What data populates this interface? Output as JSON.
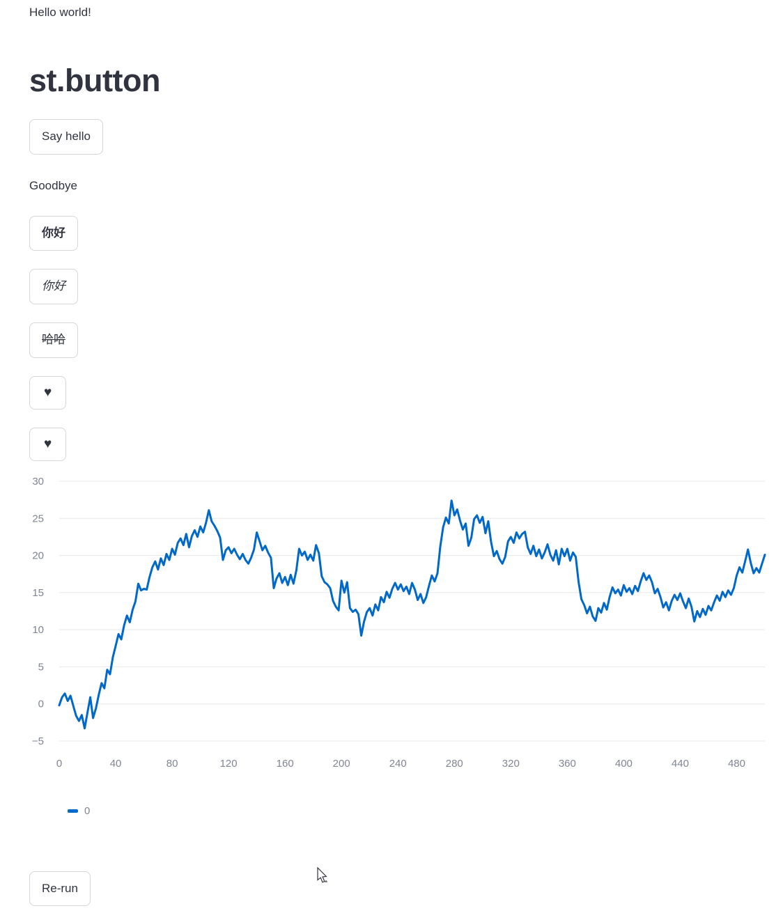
{
  "page": {
    "greeting": "Hello world!",
    "heading": "st.button",
    "say_hello_label": "Say hello",
    "goodbye_text": "Goodbye",
    "buttons": [
      {
        "label": "你好",
        "style": "bold"
      },
      {
        "label": "你好",
        "style": "italic"
      },
      {
        "label": "哈哈",
        "style": "strikethrough"
      },
      {
        "label": "♥",
        "style": "heart"
      },
      {
        "label": "♥",
        "style": "heart"
      }
    ],
    "rerun_label": "Re-run"
  },
  "colors": {
    "text": "#31333f",
    "faded_text": "#808495",
    "border": "rgba(49,51,63,0.2)",
    "gridline": "#e8e8ec",
    "series_blue": "#0068c9"
  },
  "chart_data": {
    "type": "line",
    "title": "",
    "xlabel": "",
    "ylabel": "",
    "xlim": [
      0,
      500
    ],
    "ylim": [
      -5,
      30
    ],
    "grid": "horizontal-only",
    "legend_position": "bottom-left",
    "x_ticks": [
      0,
      40,
      80,
      120,
      160,
      200,
      240,
      280,
      320,
      360,
      400,
      440,
      480
    ],
    "y_ticks": [
      30,
      25,
      20,
      15,
      10,
      5,
      0,
      -5
    ],
    "legend": [
      {
        "label": "0",
        "color": "#0068c9"
      }
    ],
    "series": [
      {
        "name": "0",
        "x_start": 0,
        "x_step": 2,
        "y": [
          -0.2,
          0.9,
          1.4,
          0.4,
          1.1,
          -0.3,
          -1.6,
          -2.3,
          -1.5,
          -3.3,
          -1.2,
          0.9,
          -1.9,
          -0.6,
          1.2,
          2.8,
          2.1,
          4.6,
          4.0,
          6.3,
          7.8,
          9.4,
          8.7,
          10.6,
          11.9,
          11.0,
          12.7,
          13.8,
          16.2,
          15.3,
          15.5,
          15.4,
          17.1,
          18.4,
          19.2,
          18.1,
          19.6,
          18.7,
          20.2,
          19.4,
          20.9,
          20.1,
          21.7,
          22.3,
          21.4,
          22.9,
          21.1,
          22.6,
          23.4,
          22.5,
          23.9,
          23.1,
          24.4,
          26.1,
          24.6,
          24.0,
          23.3,
          22.4,
          19.4,
          20.7,
          21.1,
          20.3,
          20.9,
          20.1,
          19.5,
          20.2,
          19.4,
          18.9,
          19.7,
          20.8,
          23.1,
          21.9,
          20.7,
          21.3,
          20.4,
          19.7,
          15.6,
          16.9,
          17.6,
          16.3,
          17.1,
          16.0,
          17.4,
          16.2,
          18.0,
          20.9,
          20.0,
          20.5,
          19.4,
          20.1,
          19.3,
          21.4,
          20.3,
          17.2,
          16.4,
          16.1,
          15.6,
          13.9,
          13.1,
          12.6,
          16.6,
          15.0,
          16.4,
          12.9,
          12.4,
          12.7,
          12.1,
          9.2,
          11.1,
          12.4,
          12.9,
          11.9,
          13.4,
          12.6,
          14.4,
          13.7,
          15.1,
          14.3,
          15.5,
          16.3,
          15.4,
          16.1,
          15.2,
          15.8,
          14.8,
          16.3,
          15.4,
          14.0,
          14.8,
          13.6,
          14.4,
          15.9,
          17.3,
          16.5,
          17.6,
          21.2,
          23.8,
          25.1,
          24.3,
          27.4,
          25.4,
          26.2,
          24.7,
          23.5,
          24.3,
          21.3,
          22.4,
          24.9,
          25.4,
          24.4,
          25.2,
          23.0,
          24.6,
          21.8,
          19.9,
          20.6,
          19.5,
          18.9,
          19.8,
          21.9,
          22.5,
          21.7,
          23.1,
          22.3,
          22.9,
          23.2,
          21.1,
          20.2,
          21.3,
          19.9,
          20.8,
          19.6,
          20.4,
          21.5,
          20.1,
          19.3,
          20.7,
          18.8,
          20.9,
          19.9,
          20.9,
          19.3,
          20.4,
          19.8,
          16.4,
          14.1,
          13.3,
          12.2,
          13.1,
          11.8,
          11.2,
          12.9,
          12.3,
          13.6,
          12.7,
          14.4,
          15.7,
          14.9,
          15.4,
          14.6,
          16.0,
          15.1,
          15.6,
          14.8,
          15.9,
          15.2,
          16.5,
          17.6,
          16.7,
          17.3,
          16.4,
          14.9,
          15.5,
          14.4,
          13.0,
          13.7,
          12.6,
          13.9,
          14.7,
          14.0,
          14.9,
          13.8,
          12.9,
          14.2,
          13.1,
          11.1,
          12.5,
          11.7,
          12.8,
          12.0,
          13.2,
          12.6,
          13.7,
          14.6,
          13.9,
          15.1,
          14.4,
          15.3,
          14.7,
          15.6,
          17.3,
          18.4,
          17.7,
          19.2,
          20.8,
          19.0,
          17.6,
          18.3,
          17.7,
          18.9,
          20.1
        ]
      }
    ]
  }
}
